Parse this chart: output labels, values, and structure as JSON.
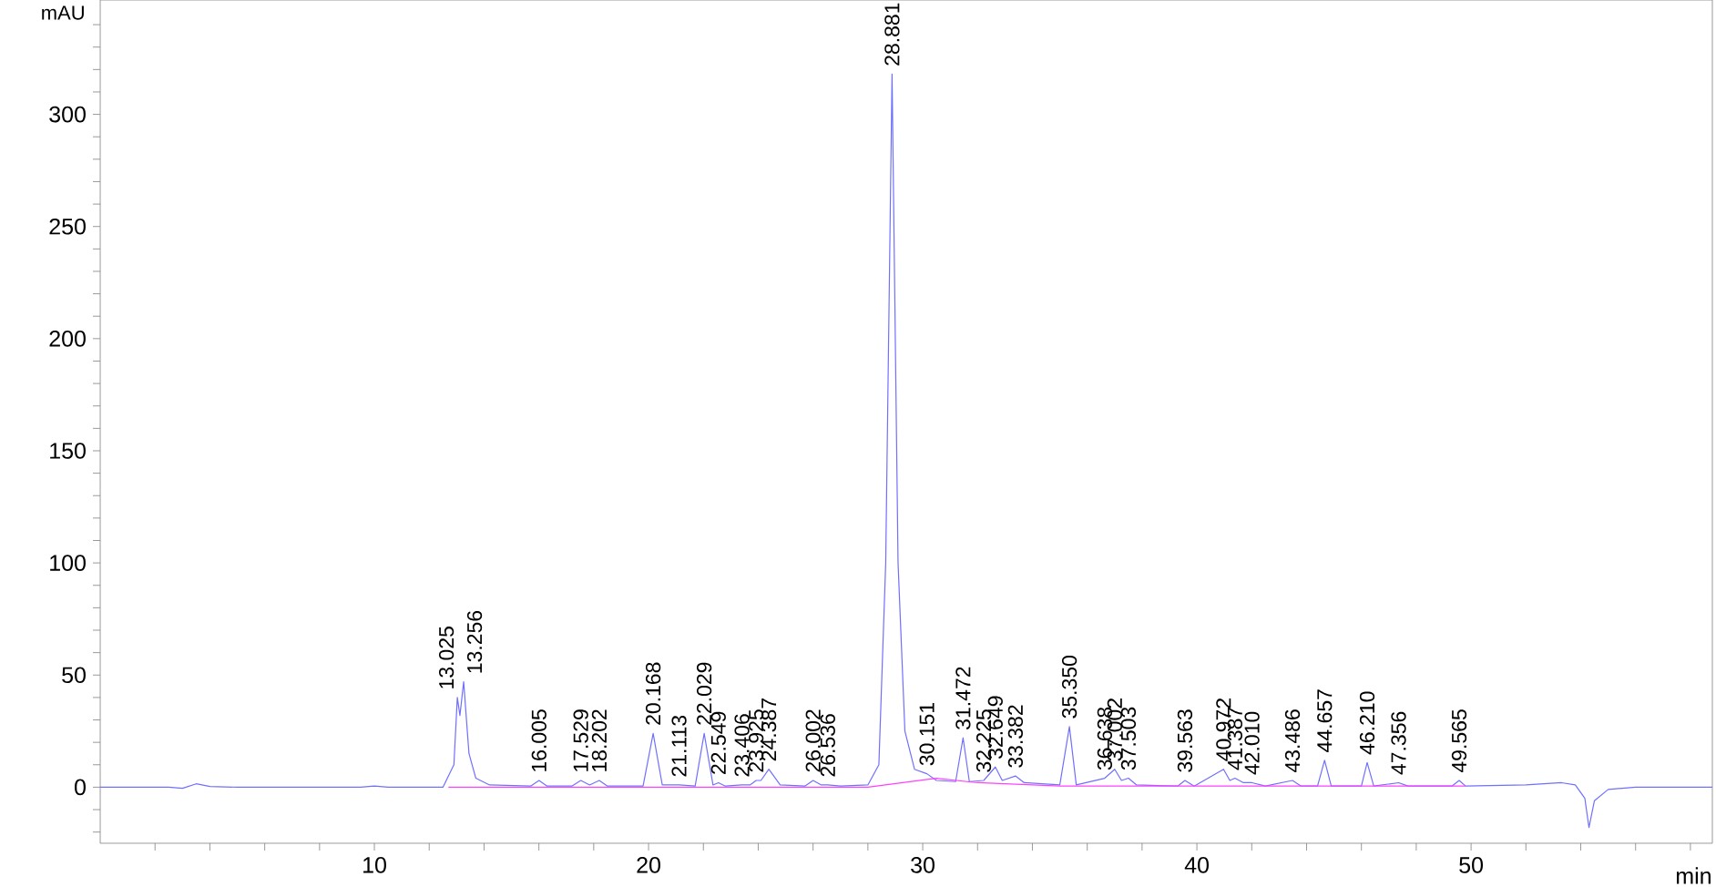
{
  "chart_data": {
    "type": "line",
    "xlabel": "min",
    "ylabel": "mAU",
    "xlim": [
      0,
      58.8
    ],
    "ylim": [
      -25,
      351
    ],
    "xticks": [
      {
        "value": 2,
        "label": null
      },
      {
        "value": 4,
        "label": null
      },
      {
        "value": 6,
        "label": null
      },
      {
        "value": 8,
        "label": null
      },
      10,
      {
        "value": 12,
        "label": null
      },
      {
        "value": 14,
        "label": null
      },
      {
        "value": 16,
        "label": null
      },
      {
        "value": 18,
        "label": null
      },
      20,
      {
        "value": 22,
        "label": null
      },
      {
        "value": 24,
        "label": null
      },
      {
        "value": 26,
        "label": null
      },
      {
        "value": 28,
        "label": null
      },
      30,
      {
        "value": 32,
        "label": null
      },
      {
        "value": 34,
        "label": null
      },
      {
        "value": 36,
        "label": null
      },
      {
        "value": 38,
        "label": null
      },
      40,
      {
        "value": 42,
        "label": null
      },
      {
        "value": 44,
        "label": null
      },
      {
        "value": 46,
        "label": null
      },
      {
        "value": 48,
        "label": null
      },
      50,
      {
        "value": 52,
        "label": null
      },
      {
        "value": 54,
        "label": null
      },
      {
        "value": 56,
        "label": null
      },
      {
        "value": 58,
        "label": null
      }
    ],
    "yticks": [
      {
        "value": -20,
        "label": null
      },
      {
        "value": -10,
        "label": null
      },
      0,
      {
        "value": 10,
        "label": null
      },
      {
        "value": 20,
        "label": null
      },
      {
        "value": 30,
        "label": null
      },
      {
        "value": 40,
        "label": null
      },
      50,
      {
        "value": 60,
        "label": null
      },
      {
        "value": 70,
        "label": null
      },
      {
        "value": 80,
        "label": null
      },
      {
        "value": 90,
        "label": null
      },
      100,
      {
        "value": 110,
        "label": null
      },
      {
        "value": 120,
        "label": null
      },
      {
        "value": 130,
        "label": null
      },
      {
        "value": 140,
        "label": null
      },
      150,
      {
        "value": 160,
        "label": null
      },
      {
        "value": 170,
        "label": null
      },
      {
        "value": 180,
        "label": null
      },
      {
        "value": 190,
        "label": null
      },
      200,
      {
        "value": 210,
        "label": null
      },
      {
        "value": 220,
        "label": null
      },
      {
        "value": 230,
        "label": null
      },
      {
        "value": 240,
        "label": null
      },
      250,
      {
        "value": 260,
        "label": null
      },
      {
        "value": 270,
        "label": null
      },
      {
        "value": 280,
        "label": null
      },
      {
        "value": 290,
        "label": null
      },
      300,
      {
        "value": 310,
        "label": null
      },
      {
        "value": 320,
        "label": null
      },
      {
        "value": 330,
        "label": null
      },
      {
        "value": 340,
        "label": null
      }
    ],
    "series": [
      {
        "color": "#7070ff",
        "x": [
          0,
          2.5,
          3.0,
          3.5,
          4.0,
          5,
          9.5,
          10,
          10.5,
          12.5,
          12.9,
          13.025,
          13.12,
          13.256,
          13.45,
          13.7,
          14.2,
          15.7,
          16.005,
          16.3,
          17.2,
          17.529,
          17.85,
          18.202,
          18.5,
          19.8,
          20.168,
          20.5,
          21.113,
          21.7,
          22.029,
          22.35,
          22.549,
          22.8,
          23.406,
          23.7,
          23.925,
          24.1,
          24.387,
          24.8,
          25.7,
          26.002,
          26.3,
          26.536,
          27,
          28.0,
          28.4,
          28.65,
          28.881,
          29.1,
          29.35,
          29.7,
          30.151,
          30.5,
          31.2,
          31.472,
          31.7,
          32.225,
          32.649,
          32.9,
          33.382,
          33.7,
          35.0,
          35.35,
          35.6,
          36.638,
          37.002,
          37.25,
          37.503,
          37.8,
          39.3,
          39.563,
          39.9,
          40.972,
          41.2,
          41.387,
          41.7,
          42.01,
          42.5,
          43.486,
          43.8,
          44.4,
          44.657,
          44.9,
          46.0,
          46.21,
          46.45,
          47.356,
          47.7,
          49.3,
          49.565,
          49.8,
          52,
          53.3,
          53.8,
          54.15,
          54.3,
          54.5,
          55,
          56,
          58.8
        ],
        "values": [
          0,
          0,
          -0.5,
          1.5,
          0.3,
          0,
          0,
          0.5,
          0,
          0,
          10,
          40,
          32,
          47,
          15,
          4,
          1,
          0.5,
          3,
          0.5,
          0.5,
          3,
          1,
          3,
          0.5,
          0.5,
          24,
          1,
          1,
          0.5,
          24,
          1,
          2,
          0.5,
          1,
          1,
          3,
          3,
          8,
          1,
          0.5,
          3,
          1,
          1,
          0.5,
          1,
          10,
          100,
          318,
          100,
          25,
          8,
          6,
          3,
          2.5,
          22,
          2.5,
          3,
          9,
          3,
          5,
          2,
          1,
          27,
          1,
          4,
          8,
          3,
          4,
          1,
          0.5,
          3,
          0.5,
          8,
          3,
          4,
          2,
          2,
          0.5,
          3,
          0.5,
          0.5,
          12,
          0.5,
          0.5,
          11,
          0.5,
          2,
          0.5,
          0.5,
          3,
          0.5,
          1,
          2,
          1,
          -5,
          -18,
          -6,
          -1,
          0,
          0
        ]
      },
      {
        "color": "#ff40ff",
        "x": [
          12.7,
          28.0,
          30.5,
          32,
          35,
          49.8
        ],
        "values": [
          0,
          0,
          4,
          2,
          0.5,
          0.5
        ]
      }
    ],
    "annotations": [
      {
        "text": "13.025",
        "x": 13.025,
        "y": 40
      },
      {
        "text": "13.256",
        "x": 13.256,
        "y": 47
      },
      {
        "text": "16.005",
        "x": 16.005,
        "y": 3
      },
      {
        "text": "17.529",
        "x": 17.529,
        "y": 3
      },
      {
        "text": "18.202",
        "x": 18.202,
        "y": 3
      },
      {
        "text": "20.168",
        "x": 20.168,
        "y": 24
      },
      {
        "text": "21.113",
        "x": 21.113,
        "y": 1
      },
      {
        "text": "22.029",
        "x": 22.029,
        "y": 24
      },
      {
        "text": "22.549",
        "x": 22.549,
        "y": 2
      },
      {
        "text": "23.406",
        "x": 23.406,
        "y": 1
      },
      {
        "text": "23.925",
        "x": 23.925,
        "y": 3
      },
      {
        "text": "24.387",
        "x": 24.387,
        "y": 8
      },
      {
        "text": "26.002",
        "x": 26.002,
        "y": 3
      },
      {
        "text": "26.536",
        "x": 26.536,
        "y": 1
      },
      {
        "text": "28.881",
        "x": 28.881,
        "y": 318
      },
      {
        "text": "30.151",
        "x": 30.151,
        "y": 6
      },
      {
        "text": "31.472",
        "x": 31.472,
        "y": 22
      },
      {
        "text": "32.225",
        "x": 32.225,
        "y": 3
      },
      {
        "text": "32.649",
        "x": 32.649,
        "y": 9
      },
      {
        "text": "33.382",
        "x": 33.382,
        "y": 5
      },
      {
        "text": "35.350",
        "x": 35.35,
        "y": 27
      },
      {
        "text": "36.638",
        "x": 36.638,
        "y": 4
      },
      {
        "text": "37.002",
        "x": 37.002,
        "y": 8
      },
      {
        "text": "37.503",
        "x": 37.503,
        "y": 4
      },
      {
        "text": "39.563",
        "x": 39.563,
        "y": 3
      },
      {
        "text": "40.972",
        "x": 40.972,
        "y": 8
      },
      {
        "text": "41.387",
        "x": 41.387,
        "y": 4
      },
      {
        "text": "42.010",
        "x": 42.01,
        "y": 2
      },
      {
        "text": "43.486",
        "x": 43.486,
        "y": 3
      },
      {
        "text": "44.657",
        "x": 44.657,
        "y": 12
      },
      {
        "text": "46.210",
        "x": 46.21,
        "y": 11
      },
      {
        "text": "47.356",
        "x": 47.356,
        "y": 2
      },
      {
        "text": "49.565",
        "x": 49.565,
        "y": 3
      }
    ]
  }
}
